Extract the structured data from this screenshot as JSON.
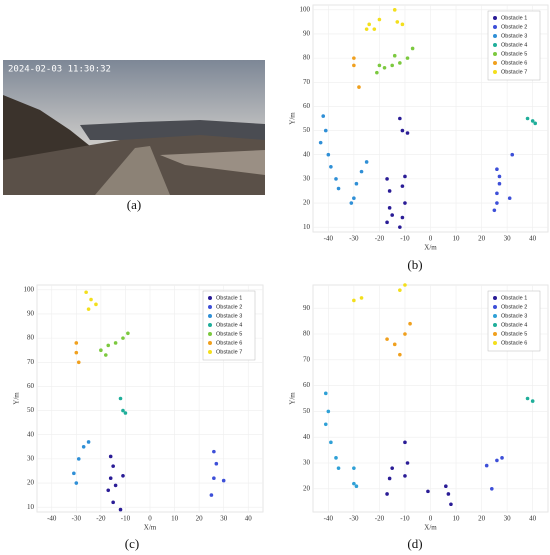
{
  "photo": {
    "timestamp": "2024-02-03 11:30:32",
    "caption": "(a)"
  },
  "chart_data": [
    {
      "type": "scatter",
      "caption": "(b)",
      "xlabel": "X/m",
      "ylabel": "Y/m",
      "xlim": [
        -46,
        46
      ],
      "ylim": [
        8,
        102
      ],
      "xticks": [
        -40,
        -30,
        -20,
        -10,
        0,
        10,
        20,
        30,
        40
      ],
      "yticks": [
        10,
        20,
        30,
        40,
        50,
        60,
        70,
        80,
        90,
        100
      ],
      "grid": true,
      "legend": "upper right",
      "series": [
        {
          "name": "Obstacle 1",
          "color": "#2a1c96",
          "x": [
            -17,
            -16,
            -16,
            -17,
            -15,
            -12,
            -11,
            -10,
            -11,
            -10,
            -11,
            -9,
            -12
          ],
          "y": [
            12,
            18,
            25,
            30,
            15,
            10,
            14,
            20,
            27,
            31,
            50,
            49,
            55
          ]
        },
        {
          "name": "Obstacle 2",
          "color": "#3d4fd8",
          "x": [
            25,
            26,
            26,
            27,
            27,
            26,
            32,
            31
          ],
          "y": [
            17,
            20,
            24,
            28,
            31,
            34,
            40,
            22
          ]
        },
        {
          "name": "Obstacle 3",
          "color": "#2f8fd6",
          "x": [
            -42,
            -41,
            -43,
            -40,
            -39,
            -37,
            -36,
            -30,
            -29,
            -27,
            -25,
            -31
          ],
          "y": [
            56,
            50,
            45,
            40,
            35,
            30,
            26,
            22,
            28,
            33,
            37,
            20
          ]
        },
        {
          "name": "Obstacle 4",
          "color": "#1fae9a",
          "x": [
            38,
            40,
            41
          ],
          "y": [
            55,
            54,
            53
          ]
        },
        {
          "name": "Obstacle 5",
          "color": "#7cc93f",
          "x": [
            -21,
            -18,
            -15,
            -12,
            -9,
            -7,
            -20,
            -14
          ],
          "y": [
            74,
            76,
            77,
            78,
            80,
            84,
            77,
            81
          ]
        },
        {
          "name": "Obstacle 6",
          "color": "#f0a01e",
          "x": [
            -30,
            -30,
            -28
          ],
          "y": [
            80,
            77,
            68
          ]
        },
        {
          "name": "Obstacle 7",
          "color": "#f3df1c",
          "x": [
            -24,
            -22,
            -20,
            -14,
            -13,
            -11,
            -25
          ],
          "y": [
            94,
            92,
            96,
            100,
            95,
            94,
            92
          ]
        }
      ]
    },
    {
      "type": "scatter",
      "caption": "(c)",
      "xlabel": "X/m",
      "ylabel": "Y/m",
      "xlim": [
        -46,
        46
      ],
      "ylim": [
        8,
        102
      ],
      "xticks": [
        -40,
        -30,
        -20,
        -10,
        0,
        10,
        20,
        30,
        40
      ],
      "yticks": [
        10,
        20,
        30,
        40,
        50,
        60,
        70,
        80,
        90,
        100
      ],
      "grid": true,
      "legend": "upper right",
      "series": [
        {
          "name": "Obstacle 1",
          "color": "#2a1c96",
          "x": [
            -17,
            -16,
            -15,
            -16,
            -14,
            -15,
            -12,
            -11
          ],
          "y": [
            17,
            22,
            27,
            31,
            19,
            12,
            9,
            23
          ]
        },
        {
          "name": "Obstacle 2",
          "color": "#3d4fd8",
          "x": [
            25,
            26,
            27,
            26,
            30
          ],
          "y": [
            15,
            22,
            28,
            33,
            21
          ]
        },
        {
          "name": "Obstacle 3",
          "color": "#2f8fd6",
          "x": [
            -30,
            -31,
            -29,
            -27,
            -25
          ],
          "y": [
            20,
            24,
            30,
            35,
            37
          ]
        },
        {
          "name": "Obstacle 4",
          "color": "#1fae9a",
          "x": [
            -11,
            -10,
            -12
          ],
          "y": [
            50,
            49,
            55
          ]
        },
        {
          "name": "Obstacle 5",
          "color": "#7cc93f",
          "x": [
            -20,
            -17,
            -14,
            -11,
            -9,
            -18
          ],
          "y": [
            75,
            77,
            78,
            80,
            82,
            73
          ]
        },
        {
          "name": "Obstacle 6",
          "color": "#f0a01e",
          "x": [
            -30,
            -30,
            -29
          ],
          "y": [
            78,
            74,
            70
          ]
        },
        {
          "name": "Obstacle 7",
          "color": "#f3df1c",
          "x": [
            -25,
            -24,
            -26,
            -22
          ],
          "y": [
            92,
            96,
            99,
            94
          ]
        }
      ]
    },
    {
      "type": "scatter",
      "caption": "(d)",
      "xlabel": "X/m",
      "ylabel": "Y/m",
      "xlim": [
        -46,
        46
      ],
      "ylim": [
        11,
        99
      ],
      "xticks": [
        -40,
        -30,
        -20,
        -10,
        0,
        10,
        20,
        30,
        40
      ],
      "yticks": [
        20,
        30,
        40,
        50,
        60,
        70,
        80,
        90
      ],
      "grid": true,
      "legend": "upper right",
      "series": [
        {
          "name": "Obstacle 1",
          "color": "#2a1c96",
          "x": [
            -17,
            -16,
            -15,
            -10,
            -9,
            -10,
            -1,
            7,
            8,
            6
          ],
          "y": [
            18,
            24,
            28,
            25,
            30,
            38,
            19,
            18,
            14,
            21
          ]
        },
        {
          "name": "Obstacle 2",
          "color": "#3d4fd8",
          "x": [
            24,
            26,
            28,
            22
          ],
          "y": [
            20,
            31,
            32,
            29
          ]
        },
        {
          "name": "Obstacle 3",
          "color": "#2fa0d6",
          "x": [
            -41,
            -40,
            -41,
            -39,
            -37,
            -36,
            -30,
            -29,
            -30
          ],
          "y": [
            57,
            50,
            45,
            38,
            32,
            28,
            22,
            21,
            28
          ]
        },
        {
          "name": "Obstacle 4",
          "color": "#1fae9a",
          "x": [
            38,
            40
          ],
          "y": [
            55,
            54
          ]
        },
        {
          "name": "Obstacle 5",
          "color": "#f0a01e",
          "x": [
            -17,
            -14,
            -10,
            -8,
            -12
          ],
          "y": [
            78,
            76,
            80,
            84,
            72
          ]
        },
        {
          "name": "Obstacle 6",
          "color": "#f3df1c",
          "x": [
            -30,
            -27,
            -12,
            -10
          ],
          "y": [
            93,
            94,
            97,
            99
          ]
        }
      ]
    }
  ]
}
